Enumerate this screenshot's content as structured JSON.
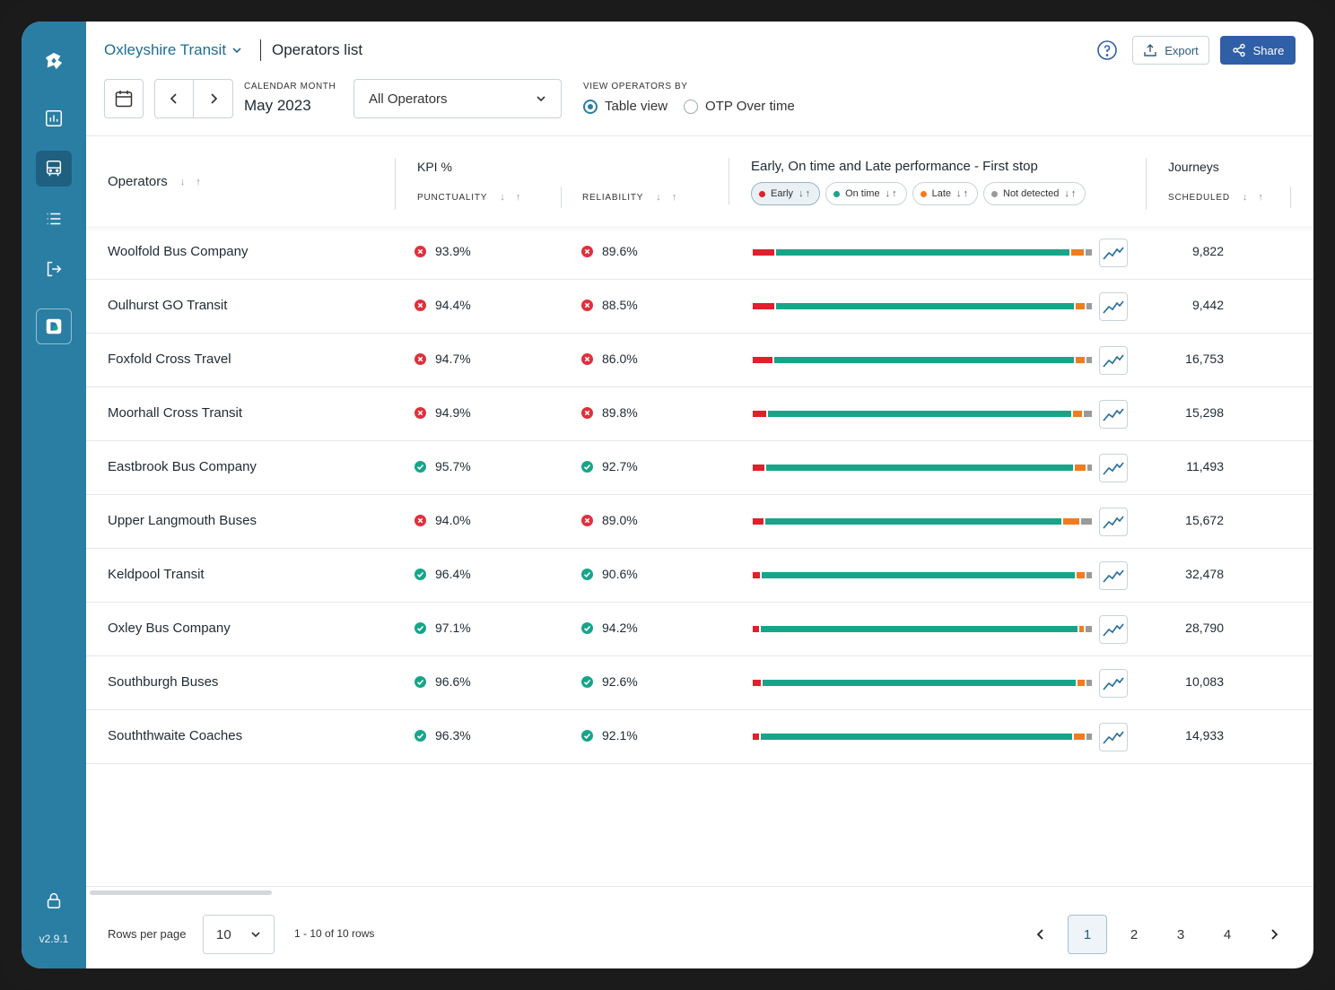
{
  "app": {
    "organisation": "Oxleyshire Transit",
    "page_title": "Operators list",
    "version": "v2.9.1",
    "export_label": "Export",
    "share_label": "Share"
  },
  "filters": {
    "calendar_label": "CALENDAR MONTH",
    "calendar_value": "May 2023",
    "operator_select": "All Operators",
    "view_label": "VIEW OPERATORS BY",
    "view_options": [
      "Table view",
      "OTP Over time"
    ],
    "view_selected": "Table view"
  },
  "table": {
    "col_operators": "Operators",
    "col_kpi": "KPI %",
    "col_punctuality": "PUNCTUALITY",
    "col_reliability": "RELIABILITY",
    "col_performance": "Early, On time and Late performance - First stop",
    "chips": [
      "Early",
      "On time",
      "Late",
      "Not detected"
    ],
    "col_journeys": "Journeys",
    "col_scheduled": "SCHEDULED",
    "rows": [
      {
        "name": "Woolfold Bus Company",
        "punctuality": "93.9%",
        "punct_ok": false,
        "reliability": "89.6%",
        "rel_ok": false,
        "perf": [
          6.4,
          87.9,
          3.9,
          1.8
        ],
        "scheduled": "9,822"
      },
      {
        "name": "Oulhurst GO Transit",
        "punctuality": "94.4%",
        "punct_ok": false,
        "reliability": "88.5%",
        "rel_ok": false,
        "perf": [
          6.4,
          89.3,
          2.6,
          1.7
        ],
        "scheduled": "9,442"
      },
      {
        "name": "Foxfold Cross Travel",
        "punctuality": "94.7%",
        "punct_ok": false,
        "reliability": "86.0%",
        "rel_ok": false,
        "perf": [
          5.9,
          89.8,
          2.6,
          1.7
        ],
        "scheduled": "16,753"
      },
      {
        "name": "Moorhall Cross Transit",
        "punctuality": "94.9%",
        "punct_ok": false,
        "reliability": "89.8%",
        "rel_ok": false,
        "perf": [
          4.1,
          90.8,
          2.8,
          2.3
        ],
        "scheduled": "15,298"
      },
      {
        "name": "Eastbrook Bus Company",
        "punctuality": "95.7%",
        "punct_ok": true,
        "reliability": "92.7%",
        "rel_ok": true,
        "perf": [
          3.5,
          91.9,
          3.3,
          1.3
        ],
        "scheduled": "11,493"
      },
      {
        "name": "Upper Langmouth Buses",
        "punctuality": "94.0%",
        "punct_ok": false,
        "reliability": "89.0%",
        "rel_ok": false,
        "perf": [
          3.3,
          87.8,
          4.6,
          3.3
        ],
        "scheduled": "15,672"
      },
      {
        "name": "Keldpool Transit",
        "punctuality": "96.4%",
        "punct_ok": true,
        "reliability": "90.6%",
        "rel_ok": true,
        "perf": [
          2.2,
          93.8,
          2.3,
          1.7
        ],
        "scheduled": "32,478"
      },
      {
        "name": "Oxley Bus Company",
        "punctuality": "97.1%",
        "punct_ok": true,
        "reliability": "94.2%",
        "rel_ok": true,
        "perf": [
          1.8,
          95.0,
          1.4,
          1.8
        ],
        "scheduled": "28,790"
      },
      {
        "name": "Southburgh Buses",
        "punctuality": "96.6%",
        "punct_ok": true,
        "reliability": "92.6%",
        "rel_ok": true,
        "perf": [
          2.5,
          93.7,
          2.3,
          1.5
        ],
        "scheduled": "10,083"
      },
      {
        "name": "Souththwaite Coaches",
        "punctuality": "96.3%",
        "punct_ok": true,
        "reliability": "92.1%",
        "rel_ok": true,
        "perf": [
          1.9,
          93.2,
          3.2,
          1.7
        ],
        "scheduled": "14,933"
      }
    ]
  },
  "footer": {
    "rows_per_page_label": "Rows per page",
    "rows_per_page": "10",
    "range_text": "1 - 10 of 10 rows",
    "pages": [
      "1",
      "2",
      "3",
      "4"
    ],
    "current_page": "1"
  },
  "colors": {
    "early": "#e0202c",
    "on_time": "#17a58a",
    "late": "#ef7d1e",
    "not_detected": "#9a9a9a",
    "sidebar": "#2a7ea3",
    "accent": "#2f5fa7"
  },
  "icons": {
    "sidebar": [
      "logo-icon",
      "chart-icon",
      "bus-icon",
      "list-icon",
      "logout-icon",
      "app-icon",
      "lock-icon"
    ]
  }
}
